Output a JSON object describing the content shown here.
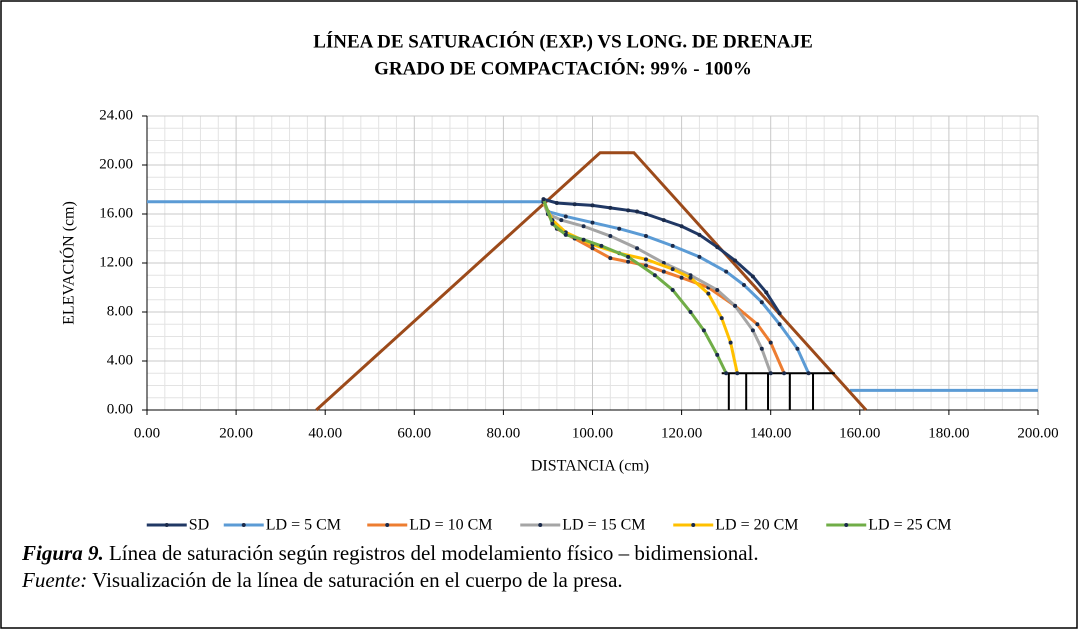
{
  "chart_data": {
    "type": "line",
    "title": [
      "LÍNEA DE SATURACIÓN (EXP.) VS LONG. DE DRENAJE",
      "GRADO DE COMPACTACIÓN: 99% - 100%"
    ],
    "x_label": "DISTANCIA (cm)",
    "y_label": "ELEVACIÓN (cm)",
    "xlim": [
      0,
      200
    ],
    "ylim": [
      0,
      24
    ],
    "xticks": [
      {
        "value": 0,
        "label": "0.00"
      },
      {
        "value": 20,
        "label": "20.00"
      },
      {
        "value": 40,
        "label": "40.00"
      },
      {
        "value": 60,
        "label": "60.00"
      },
      {
        "value": 80,
        "label": "80.00"
      },
      {
        "value": 100,
        "label": "100.00"
      },
      {
        "value": 120,
        "label": "120.00"
      },
      {
        "value": 140,
        "label": "140.00"
      },
      {
        "value": 160,
        "label": "160.00"
      },
      {
        "value": 180,
        "label": "180.00"
      },
      {
        "value": 200,
        "label": "200.00"
      }
    ],
    "yticks": [
      {
        "value": 0,
        "label": "0.00"
      },
      {
        "value": 4,
        "label": "4.00"
      },
      {
        "value": 8,
        "label": "8.00"
      },
      {
        "value": 12,
        "label": "12.00"
      },
      {
        "value": 16,
        "label": "16.00"
      },
      {
        "value": 20,
        "label": "20.00"
      },
      {
        "value": 24,
        "label": "24.00"
      }
    ],
    "grid": true,
    "legend": "bottom",
    "dam_profile": {
      "color": "#9c4a1a",
      "x": [
        38,
        101.7,
        109.3,
        161.4
      ],
      "values": [
        0,
        21,
        21,
        0
      ]
    },
    "water_upstream": {
      "color": "#5b9bd5",
      "x": [
        0,
        89.8
      ],
      "values": [
        17,
        17
      ]
    },
    "water_downstream": {
      "color": "#5b9bd5",
      "x": [
        157.8,
        200
      ],
      "values": [
        1.6,
        1.6
      ]
    },
    "drains": {
      "color": "#000000",
      "top": 3,
      "top_x": [
        129,
        154.4
      ],
      "x": [
        130.6,
        134.5,
        139.4,
        144.3,
        149.5
      ]
    },
    "series": [
      {
        "name": "SD",
        "color": "#203864",
        "x": [
          89,
          92,
          96,
          100,
          104,
          108,
          110,
          112,
          116,
          120,
          124,
          128,
          132,
          136,
          139,
          142
        ],
        "values": [
          17.2,
          16.9,
          16.8,
          16.7,
          16.5,
          16.3,
          16.2,
          16,
          15.5,
          15,
          14.3,
          13.3,
          12.2,
          10.9,
          9.6,
          7.9
        ]
      },
      {
        "name": "LD = 5 CM",
        "color": "#5b9bd5",
        "x": [
          89,
          90,
          94,
          100,
          106,
          112,
          118,
          124,
          130,
          134,
          138,
          142,
          146,
          148.5
        ],
        "values": [
          17,
          16.2,
          15.8,
          15.3,
          14.8,
          14.2,
          13.4,
          12.5,
          11.3,
          10.2,
          8.8,
          7,
          5,
          3
        ]
      },
      {
        "name": "LD = 10 CM",
        "color": "#ed7d31",
        "x": [
          89,
          90,
          92,
          96,
          100,
          104,
          108,
          112,
          116,
          120,
          126,
          132,
          137,
          140,
          143
        ],
        "values": [
          17,
          16,
          14.8,
          14,
          13.2,
          12.4,
          12.1,
          11.8,
          11.3,
          10.8,
          10,
          8.5,
          7,
          5.5,
          3
        ]
      },
      {
        "name": "LD = 15 CM",
        "color": "#a5a5a5",
        "x": [
          89,
          90,
          93,
          98,
          104,
          110,
          116,
          122,
          128,
          132,
          136,
          138,
          140
        ],
        "values": [
          17,
          16,
          15.5,
          15,
          14.2,
          13.2,
          12,
          11,
          9.8,
          8.5,
          6.5,
          5,
          3
        ]
      },
      {
        "name": "LD = 20 CM",
        "color": "#ffc000",
        "x": [
          89,
          91,
          94,
          100,
          106,
          112,
          118,
          122,
          126,
          129,
          131,
          132.5
        ],
        "values": [
          17,
          15.5,
          14.5,
          13.5,
          12.8,
          12.3,
          11.5,
          10.8,
          9.5,
          7.5,
          5.5,
          3
        ]
      },
      {
        "name": "LD = 25 CM",
        "color": "#70ad47",
        "x": [
          89,
          91,
          94,
          98,
          102,
          108,
          114,
          118,
          122,
          125,
          128,
          130
        ],
        "values": [
          17.2,
          15.2,
          14.3,
          13.9,
          13.4,
          12.5,
          11,
          9.8,
          8,
          6.5,
          4.5,
          3
        ]
      }
    ]
  },
  "caption": {
    "label": "Figura 9.",
    "text": " Línea de saturación según registros del modelamiento físico – bidimensional.",
    "source_label": "Fuente:",
    "source_text": " Visualización de la línea de saturación en el cuerpo de la presa."
  }
}
